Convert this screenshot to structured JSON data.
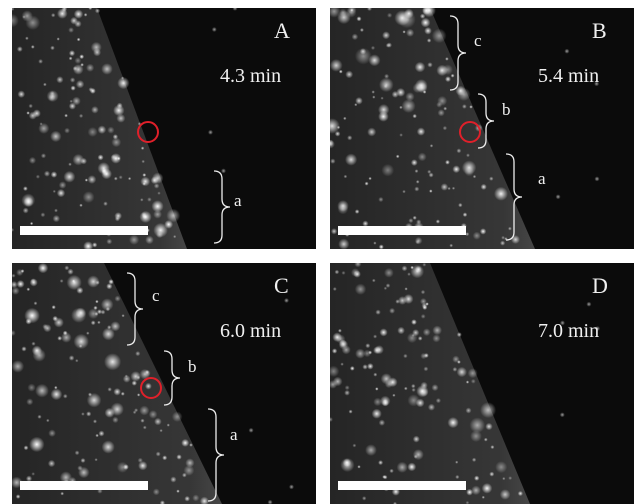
{
  "panels": [
    {
      "label": "A",
      "time": "4.3 min",
      "braces": [
        "a"
      ]
    },
    {
      "label": "B",
      "time": "5.4 min",
      "braces": [
        "c",
        "b",
        "a"
      ]
    },
    {
      "label": "C",
      "time": "6.0 min",
      "braces": [
        "c",
        "b",
        "a"
      ]
    },
    {
      "label": "D",
      "time": "7.0 min",
      "braces": []
    }
  ]
}
